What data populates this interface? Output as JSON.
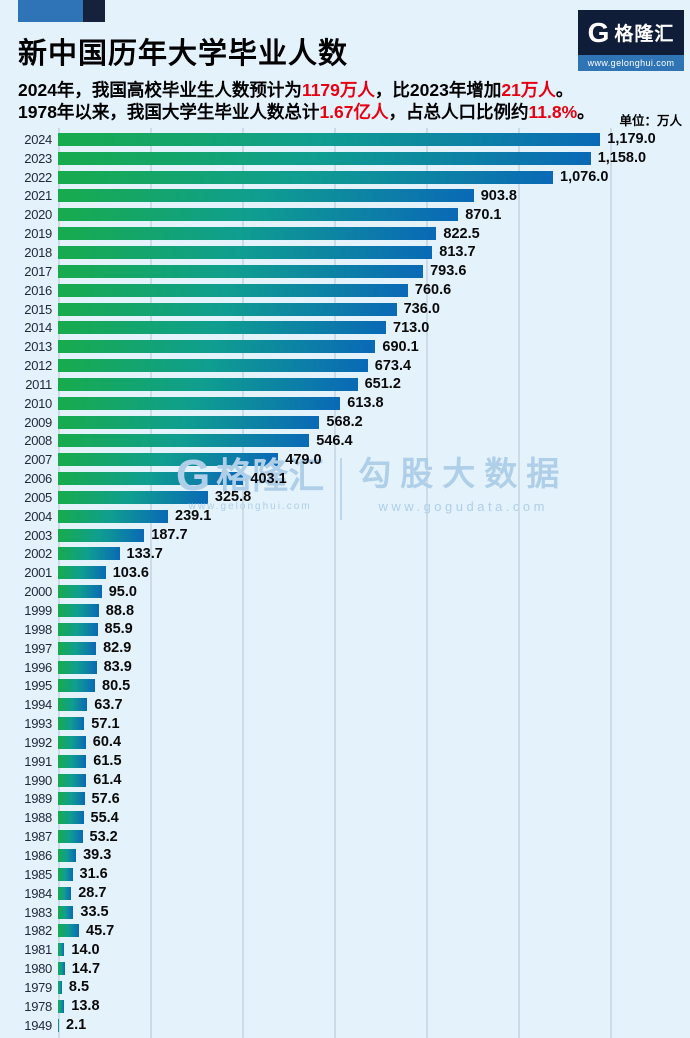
{
  "header": {
    "line1": [
      {
        "text": "2024年，我国高校毕业生人数预计为",
        "red": false
      },
      {
        "text": "1179万人",
        "red": true
      },
      {
        "text": "，比2023年增加",
        "red": false
      },
      {
        "text": "21万人",
        "red": true
      },
      {
        "text": "。",
        "red": false
      }
    ],
    "line2": [
      {
        "text": "1978年以来，我国大学生毕业人数总计",
        "red": false
      },
      {
        "text": "1.67亿人",
        "red": true
      },
      {
        "text": "，占总人口比例约",
        "red": false
      },
      {
        "text": "11.8%",
        "red": true
      },
      {
        "text": "。",
        "red": false
      }
    ]
  },
  "logo": {
    "mark": "G",
    "brand": "格隆汇",
    "url": "www.gelonghui.com"
  },
  "watermark": {
    "brand": "格隆汇",
    "brand_url": "www.gelonghui.com",
    "gogu": "勾股大数据",
    "gogu_url": "www.gogudata.com"
  },
  "colors": {
    "background": "#e4f2fc",
    "bar_gradient_start": "#18ab4c",
    "bar_gradient_mid": "#0f9e90",
    "bar_gradient_end": "#0a69b6",
    "accent_red": "#e60012",
    "logo_navy": "#101d38",
    "logo_blue": "#2f74b5",
    "gridline": "#ccdbe7"
  },
  "chart_data": {
    "type": "bar",
    "orientation": "horizontal",
    "title": "新中国历年大学毕业人数",
    "unit_label": "单位：万人",
    "xlim": [
      0,
      1200
    ],
    "grid_step": 200,
    "grid": "vertical-lines",
    "legend": "none",
    "categories": [
      "2024",
      "2023",
      "2022",
      "2021",
      "2020",
      "2019",
      "2018",
      "2017",
      "2016",
      "2015",
      "2014",
      "2013",
      "2012",
      "2011",
      "2010",
      "2009",
      "2008",
      "2007",
      "2006",
      "2005",
      "2004",
      "2003",
      "2002",
      "2001",
      "2000",
      "1999",
      "1998",
      "1997",
      "1996",
      "1995",
      "1994",
      "1993",
      "1992",
      "1991",
      "1990",
      "1989",
      "1988",
      "1987",
      "1986",
      "1985",
      "1984",
      "1983",
      "1982",
      "1981",
      "1980",
      "1979",
      "1978",
      "1949"
    ],
    "values": [
      1179.0,
      1158.0,
      1076.0,
      903.8,
      870.1,
      822.5,
      813.7,
      793.6,
      760.6,
      736.0,
      713.0,
      690.1,
      673.4,
      651.2,
      613.8,
      568.2,
      546.4,
      479.0,
      403.1,
      325.8,
      239.1,
      187.7,
      133.7,
      103.6,
      95.0,
      88.8,
      85.9,
      82.9,
      83.9,
      80.5,
      63.7,
      57.1,
      60.4,
      61.5,
      61.4,
      57.6,
      55.4,
      53.2,
      39.3,
      31.6,
      28.7,
      33.5,
      45.7,
      14.0,
      14.7,
      8.5,
      13.8,
      2.1
    ],
    "value_labels": [
      "1,179.0",
      "1,158.0",
      "1,076.0",
      "903.8",
      "870.1",
      "822.5",
      "813.7",
      "793.6",
      "760.6",
      "736.0",
      "713.0",
      "690.1",
      "673.4",
      "651.2",
      "613.8",
      "568.2",
      "546.4",
      "479.0",
      "403.1",
      "325.8",
      "239.1",
      "187.7",
      "133.7",
      "103.6",
      "95.0",
      "88.8",
      "85.9",
      "82.9",
      "83.9",
      "80.5",
      "63.7",
      "57.1",
      "60.4",
      "61.5",
      "61.4",
      "57.6",
      "55.4",
      "53.2",
      "39.3",
      "31.6",
      "28.7",
      "33.5",
      "45.7",
      "14.0",
      "14.7",
      "8.5",
      "13.8",
      "2.1"
    ]
  }
}
